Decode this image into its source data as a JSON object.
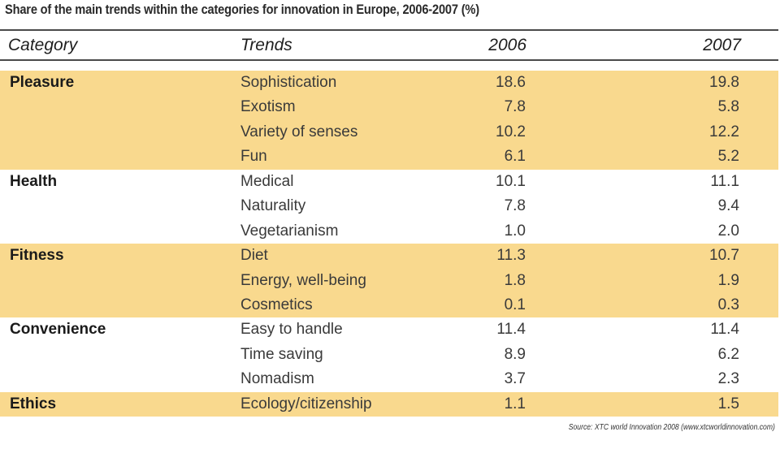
{
  "title": "Share of the main trends within the categories for innovation in Europe, 2006-2007 (%)",
  "headers": {
    "category": "Category",
    "trends": "Trends",
    "year1": "2006",
    "year2": "2007"
  },
  "source": "Source: XTC world Innovation 2008 (www.xtcworldinnovation.com)",
  "colors": {
    "shade": "#f9d98e",
    "rule": "#4a4a4a"
  },
  "chart_data": {
    "type": "table",
    "title": "Share of the main trends within the categories for innovation in Europe, 2006-2007 (%)",
    "columns": [
      "Category",
      "Trends",
      "2006",
      "2007"
    ],
    "rows": [
      {
        "category": "Pleasure",
        "trend": "Sophistication",
        "v2006": "18.6",
        "v2007": "19.8",
        "shaded": true
      },
      {
        "category": "",
        "trend": "Exotism",
        "v2006": "7.8",
        "v2007": "5.8",
        "shaded": true
      },
      {
        "category": "",
        "trend": "Variety of senses",
        "v2006": "10.2",
        "v2007": "12.2",
        "shaded": true
      },
      {
        "category": "",
        "trend": "Fun",
        "v2006": "6.1",
        "v2007": "5.2",
        "shaded": true
      },
      {
        "category": "Health",
        "trend": "Medical",
        "v2006": "10.1",
        "v2007": "11.1",
        "shaded": false
      },
      {
        "category": "",
        "trend": "Naturality",
        "v2006": "7.8",
        "v2007": "9.4",
        "shaded": false
      },
      {
        "category": "",
        "trend": "Vegetarianism",
        "v2006": "1.0",
        "v2007": "2.0",
        "shaded": false
      },
      {
        "category": "Fitness",
        "trend": "Diet",
        "v2006": "11.3",
        "v2007": "10.7",
        "shaded": true
      },
      {
        "category": "",
        "trend": "Energy, well-being",
        "v2006": "1.8",
        "v2007": "1.9",
        "shaded": true
      },
      {
        "category": "",
        "trend": "Cosmetics",
        "v2006": "0.1",
        "v2007": "0.3",
        "shaded": true
      },
      {
        "category": "Convenience",
        "trend": "Easy to handle",
        "v2006": "11.4",
        "v2007": "11.4",
        "shaded": false
      },
      {
        "category": "",
        "trend": "Time saving",
        "v2006": "8.9",
        "v2007": "6.2",
        "shaded": false
      },
      {
        "category": "",
        "trend": "Nomadism",
        "v2006": "3.7",
        "v2007": "2.3",
        "shaded": false
      },
      {
        "category": "Ethics",
        "trend": "Ecology/citizenship",
        "v2006": "1.1",
        "v2007": "1.5",
        "shaded": true
      }
    ]
  }
}
